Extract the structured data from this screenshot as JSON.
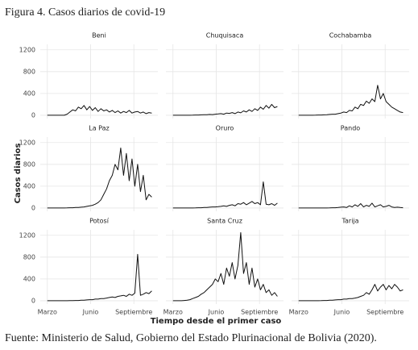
{
  "title": "Figura 4. Casos diarios de covid-19",
  "y_label": "Casos diarios",
  "x_label": "Tiempo desde el primer caso",
  "source": "Fuente: Ministerio de Salud, Gobierno del Estado Plurinacional de Bolivia (2020).",
  "chart_data": [
    {
      "type": "line",
      "title": "Beni",
      "color": "#111111",
      "grid": true,
      "xlim": [
        -15,
        235
      ],
      "ylim": [
        -60,
        1300
      ],
      "yticks": [
        0,
        400,
        800,
        1200
      ],
      "xticks": [
        {
          "value": 0,
          "label": "Marzo"
        },
        {
          "value": 92,
          "label": "Junio"
        },
        {
          "value": 184,
          "label": "Septiembre"
        }
      ],
      "x": [
        0,
        6,
        12,
        18,
        24,
        30,
        36,
        42,
        48,
        54,
        60,
        66,
        72,
        78,
        84,
        90,
        96,
        102,
        108,
        114,
        120,
        126,
        132,
        138,
        144,
        150,
        156,
        162,
        168,
        174,
        180,
        186,
        192,
        198,
        204,
        210,
        216,
        222
      ],
      "values": [
        0,
        0,
        0,
        0,
        0,
        0,
        0,
        20,
        60,
        100,
        80,
        150,
        120,
        180,
        100,
        160,
        90,
        140,
        70,
        120,
        80,
        100,
        60,
        90,
        50,
        80,
        40,
        70,
        50,
        90,
        40,
        60,
        70,
        40,
        60,
        30,
        50,
        40
      ]
    },
    {
      "type": "line",
      "title": "Chuquisaca",
      "color": "#111111",
      "grid": true,
      "xlim": [
        -15,
        235
      ],
      "ylim": [
        -60,
        1300
      ],
      "yticks": [
        0,
        400,
        800,
        1200
      ],
      "xticks": [
        {
          "value": 0,
          "label": "Marzo"
        },
        {
          "value": 92,
          "label": "Junio"
        },
        {
          "value": 184,
          "label": "Septiembre"
        }
      ],
      "x": [
        0,
        6,
        12,
        18,
        24,
        30,
        36,
        42,
        48,
        54,
        60,
        66,
        72,
        78,
        84,
        90,
        96,
        102,
        108,
        114,
        120,
        126,
        132,
        138,
        144,
        150,
        156,
        162,
        168,
        174,
        180,
        186,
        192,
        198,
        204,
        210,
        216,
        222
      ],
      "values": [
        0,
        0,
        0,
        0,
        0,
        0,
        0,
        2,
        5,
        5,
        8,
        10,
        10,
        15,
        12,
        20,
        25,
        30,
        20,
        40,
        35,
        50,
        30,
        60,
        45,
        80,
        60,
        100,
        70,
        120,
        90,
        150,
        110,
        180,
        130,
        200,
        140,
        160
      ]
    },
    {
      "type": "line",
      "title": "Cochabamba",
      "color": "#111111",
      "grid": true,
      "xlim": [
        -15,
        235
      ],
      "ylim": [
        -60,
        1300
      ],
      "yticks": [
        0,
        400,
        800,
        1200
      ],
      "xticks": [
        {
          "value": 0,
          "label": "Marzo"
        },
        {
          "value": 92,
          "label": "Junio"
        },
        {
          "value": 184,
          "label": "Septiembre"
        }
      ],
      "x": [
        0,
        6,
        12,
        18,
        24,
        30,
        36,
        42,
        48,
        54,
        60,
        66,
        72,
        78,
        84,
        90,
        96,
        102,
        108,
        114,
        120,
        126,
        132,
        138,
        144,
        150,
        156,
        162,
        168,
        174,
        180,
        186,
        192,
        198,
        204,
        210,
        216,
        222
      ],
      "values": [
        0,
        0,
        0,
        0,
        0,
        0,
        2,
        5,
        5,
        8,
        10,
        15,
        20,
        20,
        30,
        40,
        60,
        50,
        90,
        80,
        150,
        120,
        200,
        180,
        260,
        220,
        300,
        250,
        550,
        300,
        400,
        250,
        200,
        150,
        120,
        90,
        60,
        50
      ]
    },
    {
      "type": "line",
      "title": "La Paz",
      "color": "#111111",
      "grid": true,
      "xlim": [
        -15,
        235
      ],
      "ylim": [
        -60,
        1300
      ],
      "yticks": [
        0,
        400,
        800,
        1200
      ],
      "xticks": [
        {
          "value": 0,
          "label": "Marzo"
        },
        {
          "value": 92,
          "label": "Junio"
        },
        {
          "value": 184,
          "label": "Septiembre"
        }
      ],
      "x": [
        0,
        6,
        12,
        18,
        24,
        30,
        36,
        42,
        48,
        54,
        60,
        66,
        72,
        78,
        84,
        90,
        96,
        102,
        108,
        114,
        120,
        126,
        132,
        138,
        144,
        150,
        156,
        162,
        168,
        174,
        180,
        186,
        192,
        198,
        204,
        210,
        216,
        222
      ],
      "values": [
        0,
        0,
        0,
        0,
        0,
        0,
        0,
        2,
        5,
        5,
        10,
        10,
        15,
        20,
        30,
        40,
        50,
        70,
        100,
        150,
        250,
        350,
        500,
        600,
        800,
        700,
        1100,
        600,
        1000,
        500,
        900,
        400,
        800,
        300,
        600,
        150,
        250,
        200
      ]
    },
    {
      "type": "line",
      "title": "Oruro",
      "color": "#111111",
      "grid": true,
      "xlim": [
        -15,
        235
      ],
      "ylim": [
        -60,
        1300
      ],
      "yticks": [
        0,
        400,
        800,
        1200
      ],
      "xticks": [
        {
          "value": 0,
          "label": "Marzo"
        },
        {
          "value": 92,
          "label": "Junio"
        },
        {
          "value": 184,
          "label": "Septiembre"
        }
      ],
      "x": [
        0,
        6,
        12,
        18,
        24,
        30,
        36,
        42,
        48,
        54,
        60,
        66,
        72,
        78,
        84,
        90,
        96,
        102,
        108,
        114,
        120,
        126,
        132,
        138,
        144,
        150,
        156,
        162,
        168,
        174,
        180,
        186,
        192,
        198,
        204,
        210,
        216,
        222
      ],
      "values": [
        0,
        0,
        0,
        0,
        0,
        0,
        0,
        0,
        2,
        5,
        5,
        10,
        10,
        15,
        20,
        20,
        25,
        30,
        40,
        30,
        50,
        60,
        40,
        80,
        70,
        100,
        60,
        90,
        120,
        80,
        100,
        60,
        480,
        70,
        60,
        80,
        50,
        90
      ]
    },
    {
      "type": "line",
      "title": "Pando",
      "color": "#111111",
      "grid": true,
      "xlim": [
        -15,
        235
      ],
      "ylim": [
        -60,
        1300
      ],
      "yticks": [
        0,
        400,
        800,
        1200
      ],
      "xticks": [
        {
          "value": 0,
          "label": "Marzo"
        },
        {
          "value": 92,
          "label": "Junio"
        },
        {
          "value": 184,
          "label": "Septiembre"
        }
      ],
      "x": [
        0,
        6,
        12,
        18,
        24,
        30,
        36,
        42,
        48,
        54,
        60,
        66,
        72,
        78,
        84,
        90,
        96,
        102,
        108,
        114,
        120,
        126,
        132,
        138,
        144,
        150,
        156,
        162,
        168,
        174,
        180,
        186,
        192,
        198,
        204,
        210,
        216,
        222
      ],
      "values": [
        0,
        0,
        0,
        0,
        0,
        0,
        0,
        0,
        0,
        0,
        0,
        2,
        5,
        5,
        10,
        15,
        20,
        10,
        40,
        20,
        60,
        30,
        80,
        20,
        50,
        30,
        90,
        20,
        40,
        60,
        20,
        30,
        50,
        20,
        10,
        15,
        10,
        5
      ]
    },
    {
      "type": "line",
      "title": "Potosí",
      "color": "#111111",
      "grid": true,
      "xlim": [
        -15,
        235
      ],
      "ylim": [
        -60,
        1300
      ],
      "yticks": [
        0,
        400,
        800,
        1200
      ],
      "xticks": [
        {
          "value": 0,
          "label": "Marzo"
        },
        {
          "value": 92,
          "label": "Junio"
        },
        {
          "value": 184,
          "label": "Septiembre"
        }
      ],
      "x": [
        0,
        6,
        12,
        18,
        24,
        30,
        36,
        42,
        48,
        54,
        60,
        66,
        72,
        78,
        84,
        90,
        96,
        102,
        108,
        114,
        120,
        126,
        132,
        138,
        144,
        150,
        156,
        162,
        168,
        174,
        180,
        186,
        192,
        198,
        204,
        210,
        216,
        222
      ],
      "values": [
        0,
        0,
        0,
        0,
        0,
        0,
        0,
        0,
        2,
        2,
        5,
        5,
        10,
        10,
        15,
        20,
        20,
        30,
        30,
        40,
        40,
        50,
        60,
        70,
        60,
        80,
        90,
        100,
        80,
        120,
        100,
        140,
        850,
        100,
        120,
        150,
        130,
        180
      ]
    },
    {
      "type": "line",
      "title": "Santa Cruz",
      "color": "#111111",
      "grid": true,
      "xlim": [
        -15,
        235
      ],
      "ylim": [
        -60,
        1300
      ],
      "yticks": [
        0,
        400,
        800,
        1200
      ],
      "xticks": [
        {
          "value": 0,
          "label": "Marzo"
        },
        {
          "value": 92,
          "label": "Junio"
        },
        {
          "value": 184,
          "label": "Septiembre"
        }
      ],
      "x": [
        0,
        6,
        12,
        18,
        24,
        30,
        36,
        42,
        48,
        54,
        60,
        66,
        72,
        78,
        84,
        90,
        96,
        102,
        108,
        114,
        120,
        126,
        132,
        138,
        144,
        150,
        156,
        162,
        168,
        174,
        180,
        186,
        192,
        198,
        204,
        210,
        216,
        222
      ],
      "values": [
        0,
        0,
        0,
        0,
        5,
        10,
        20,
        40,
        60,
        80,
        120,
        150,
        200,
        250,
        300,
        400,
        350,
        500,
        300,
        600,
        450,
        700,
        400,
        650,
        1250,
        500,
        700,
        300,
        600,
        250,
        400,
        200,
        300,
        150,
        200,
        100,
        150,
        80
      ]
    },
    {
      "type": "line",
      "title": "Tarija",
      "color": "#111111",
      "grid": true,
      "xlim": [
        -15,
        235
      ],
      "ylim": [
        -60,
        1300
      ],
      "yticks": [
        0,
        400,
        800,
        1200
      ],
      "xticks": [
        {
          "value": 0,
          "label": "Marzo"
        },
        {
          "value": 92,
          "label": "Junio"
        },
        {
          "value": 184,
          "label": "Septiembre"
        }
      ],
      "x": [
        0,
        6,
        12,
        18,
        24,
        30,
        36,
        42,
        48,
        54,
        60,
        66,
        72,
        78,
        84,
        90,
        96,
        102,
        108,
        114,
        120,
        126,
        132,
        138,
        144,
        150,
        156,
        162,
        168,
        174,
        180,
        186,
        192,
        198,
        204,
        210,
        216,
        222
      ],
      "values": [
        0,
        0,
        0,
        0,
        0,
        0,
        0,
        0,
        2,
        5,
        5,
        10,
        10,
        15,
        20,
        20,
        30,
        30,
        40,
        40,
        50,
        60,
        80,
        100,
        150,
        120,
        200,
        300,
        180,
        250,
        300,
        200,
        280,
        220,
        300,
        250,
        180,
        200
      ]
    }
  ]
}
